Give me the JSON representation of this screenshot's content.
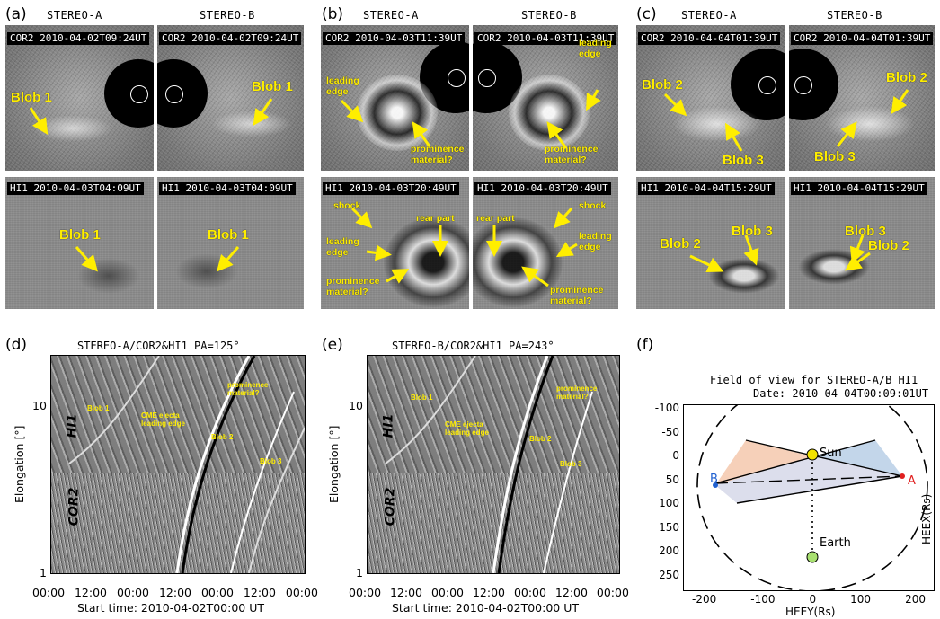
{
  "panels_top": {
    "a": {
      "letter": "(a)",
      "title_a": "STEREO-A",
      "title_b": "STEREO-B",
      "cor2_tag_a": "COR2 2010-04-02T09:24UT",
      "cor2_tag_b": "COR2 2010-04-02T09:24UT",
      "hi1_tag_a": "HI1 2010-04-03T04:09UT",
      "hi1_tag_b": "HI1 2010-04-03T04:09UT",
      "labels": {
        "blob1": "Blob 1"
      }
    },
    "b": {
      "letter": "(b)",
      "title_a": "STEREO-A",
      "title_b": "STEREO-B",
      "cor2_tag_a": "COR2 2010-04-03T11:39UT",
      "cor2_tag_b": "COR2 2010-04-03T11:39UT",
      "hi1_tag_a": "HI1 2010-04-03T20:49UT",
      "hi1_tag_b": "HI1 2010-04-03T20:49UT",
      "labels": {
        "leading_edge": "leading edge",
        "prominence": "prominence material?",
        "shock": "shock",
        "rear_part": "rear part"
      }
    },
    "c": {
      "letter": "(c)",
      "title_a": "STEREO-A",
      "title_b": "STEREO-B",
      "cor2_tag_a": "COR2 2010-04-04T01:39UT",
      "cor2_tag_b": "COR2 2010-04-04T01:39UT",
      "hi1_tag_a": "HI1 2010-04-04T15:29UT",
      "hi1_tag_b": "HI1 2010-04-04T15:29UT",
      "labels": {
        "blob2": "Blob 2",
        "blob3": "Blob 3"
      }
    }
  },
  "panel_d": {
    "letter": "(d)",
    "title": "STEREO-A/COR2&HI1 PA=125°",
    "ylabel": "Elongation [°]",
    "hi1": "HI1",
    "cor2": "COR2",
    "yticks": [
      "10",
      "1"
    ],
    "xticks": [
      "00:00",
      "12:00",
      "00:00",
      "12:00",
      "00:00",
      "12:00",
      "00:00"
    ],
    "xlabel": "Start time: 2010-04-02T00:00 UT",
    "annotations": {
      "blob1": "Blob 1",
      "cme": "CME ejecta leading edge",
      "prom": "prominence material?",
      "blob2": "Blob 2",
      "blob3": "Blob 3"
    }
  },
  "panel_e": {
    "letter": "(e)",
    "title": "STEREO-B/COR2&HI1 PA=243°",
    "ylabel": "Elongation [°]",
    "hi1": "HI1",
    "cor2": "COR2",
    "yticks": [
      "10",
      "1"
    ],
    "xticks": [
      "00:00",
      "12:00",
      "00:00",
      "12:00",
      "00:00",
      "12:00",
      "00:00"
    ],
    "xlabel": "Start time: 2010-04-02T00:00 UT",
    "annotations": {
      "blob1": "Blob 1",
      "cme": "CME ejecta leading edge",
      "prom": "prominence material?",
      "blob2": "Blob 2",
      "blob3": "Blob 3"
    }
  },
  "panel_f": {
    "letter": "(f)",
    "title": "Field of view for STEREO-A/B HI1",
    "date": "Date: 2010-04-04T00:09:01UT",
    "xlabel": "HEEY(Rs)",
    "ylabel": "HEEX(Rs)",
    "xticks": [
      "-200",
      "-100",
      "0",
      "100",
      "200"
    ],
    "yticks": [
      "-100",
      "-50",
      "0",
      "50",
      "100",
      "150",
      "200",
      "250"
    ],
    "sun": "Sun",
    "earth": "Earth",
    "a": "A",
    "b": "B",
    "colors": {
      "a_fov": "#f4c4a8",
      "b_fov": "#b8cfe6",
      "overlap": "#cdd0e4",
      "sun": "#f2e200",
      "earth": "#a8e070",
      "a_marker": "#e02020",
      "b_marker": "#2060d0"
    }
  }
}
